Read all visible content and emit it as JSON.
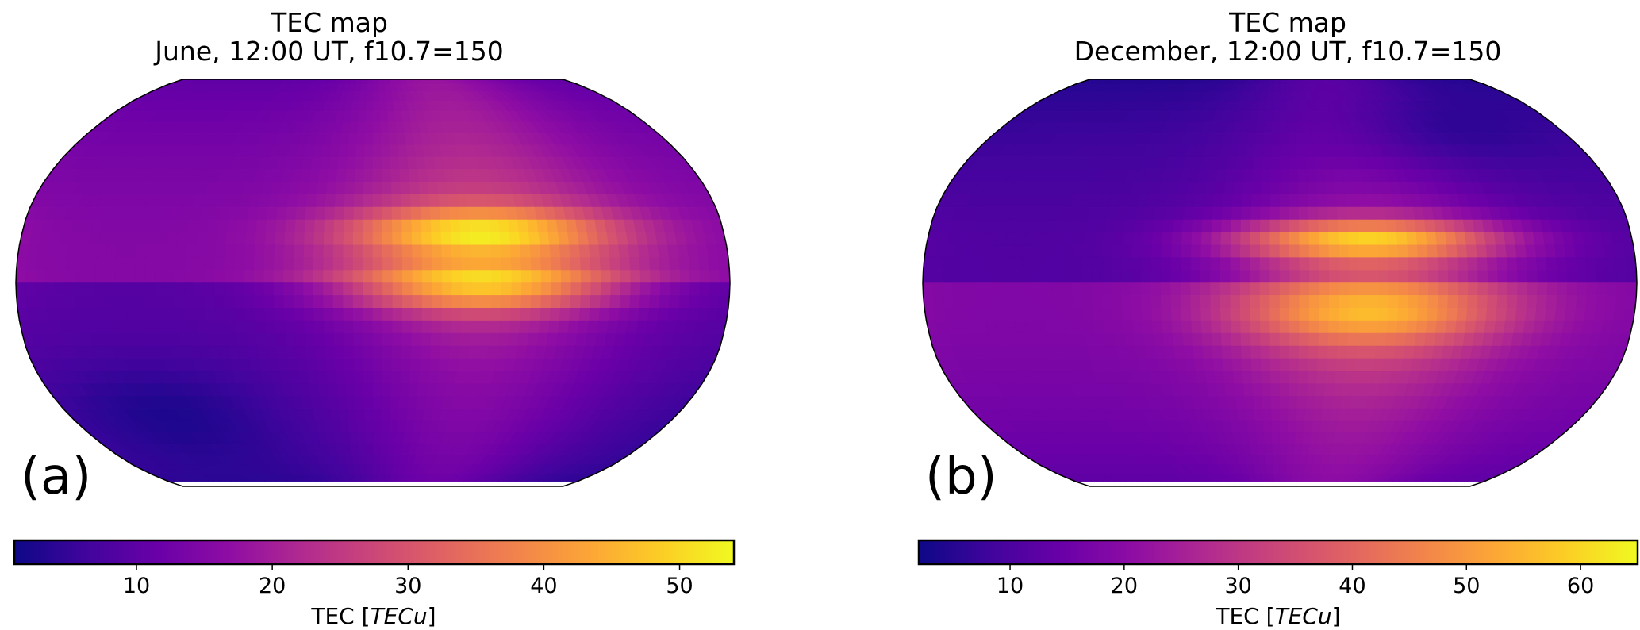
{
  "chart_data": [
    {
      "type": "heatmap",
      "projection": "robinson",
      "colormap": "plasma",
      "title_line1": "TEC map",
      "title_line2": "June, 12:00 UT, f10.7=150",
      "panel_label": "(a)",
      "colorbar": {
        "label_prefix": "TEC [",
        "label_unit": "TECu",
        "label_suffix": "]",
        "range": [
          1,
          54
        ],
        "ticks": [
          10,
          20,
          30,
          40,
          50
        ],
        "tick_labels": [
          "10",
          "20",
          "30",
          "40",
          "50"
        ]
      }
    },
    {
      "type": "heatmap",
      "projection": "robinson",
      "colormap": "plasma",
      "title_line1": "TEC map",
      "title_line2": "December, 12:00 UT, f10.7=150",
      "panel_label": "(b)",
      "colorbar": {
        "label_prefix": "TEC [",
        "label_unit": "TECu",
        "label_suffix": "]",
        "range": [
          2,
          65
        ],
        "ticks": [
          10,
          20,
          30,
          40,
          50,
          60
        ],
        "tick_labels": [
          "10",
          "20",
          "30",
          "40",
          "50",
          "60"
        ]
      }
    }
  ]
}
